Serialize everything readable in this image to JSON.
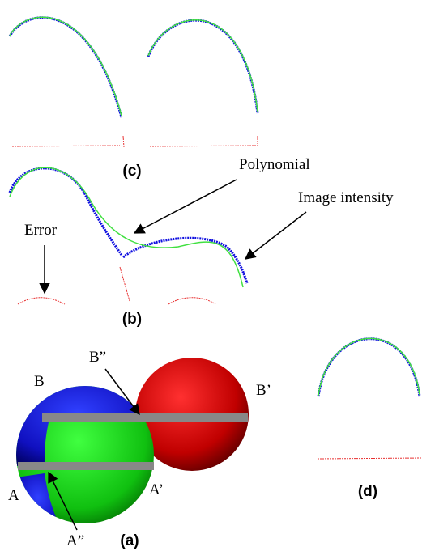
{
  "panel_c": {
    "label": "(c)"
  },
  "panel_b": {
    "label": "(b)",
    "polynomial": "Polynomial",
    "image_intensity": "Image intensity",
    "error": "Error"
  },
  "panel_a": {
    "label": "(a)",
    "b": "B",
    "b_prime": "B’",
    "b_double": "B”",
    "a": "A",
    "a_prime": "A’",
    "a_double": "A”"
  },
  "panel_d": {
    "label": "(d)"
  }
}
